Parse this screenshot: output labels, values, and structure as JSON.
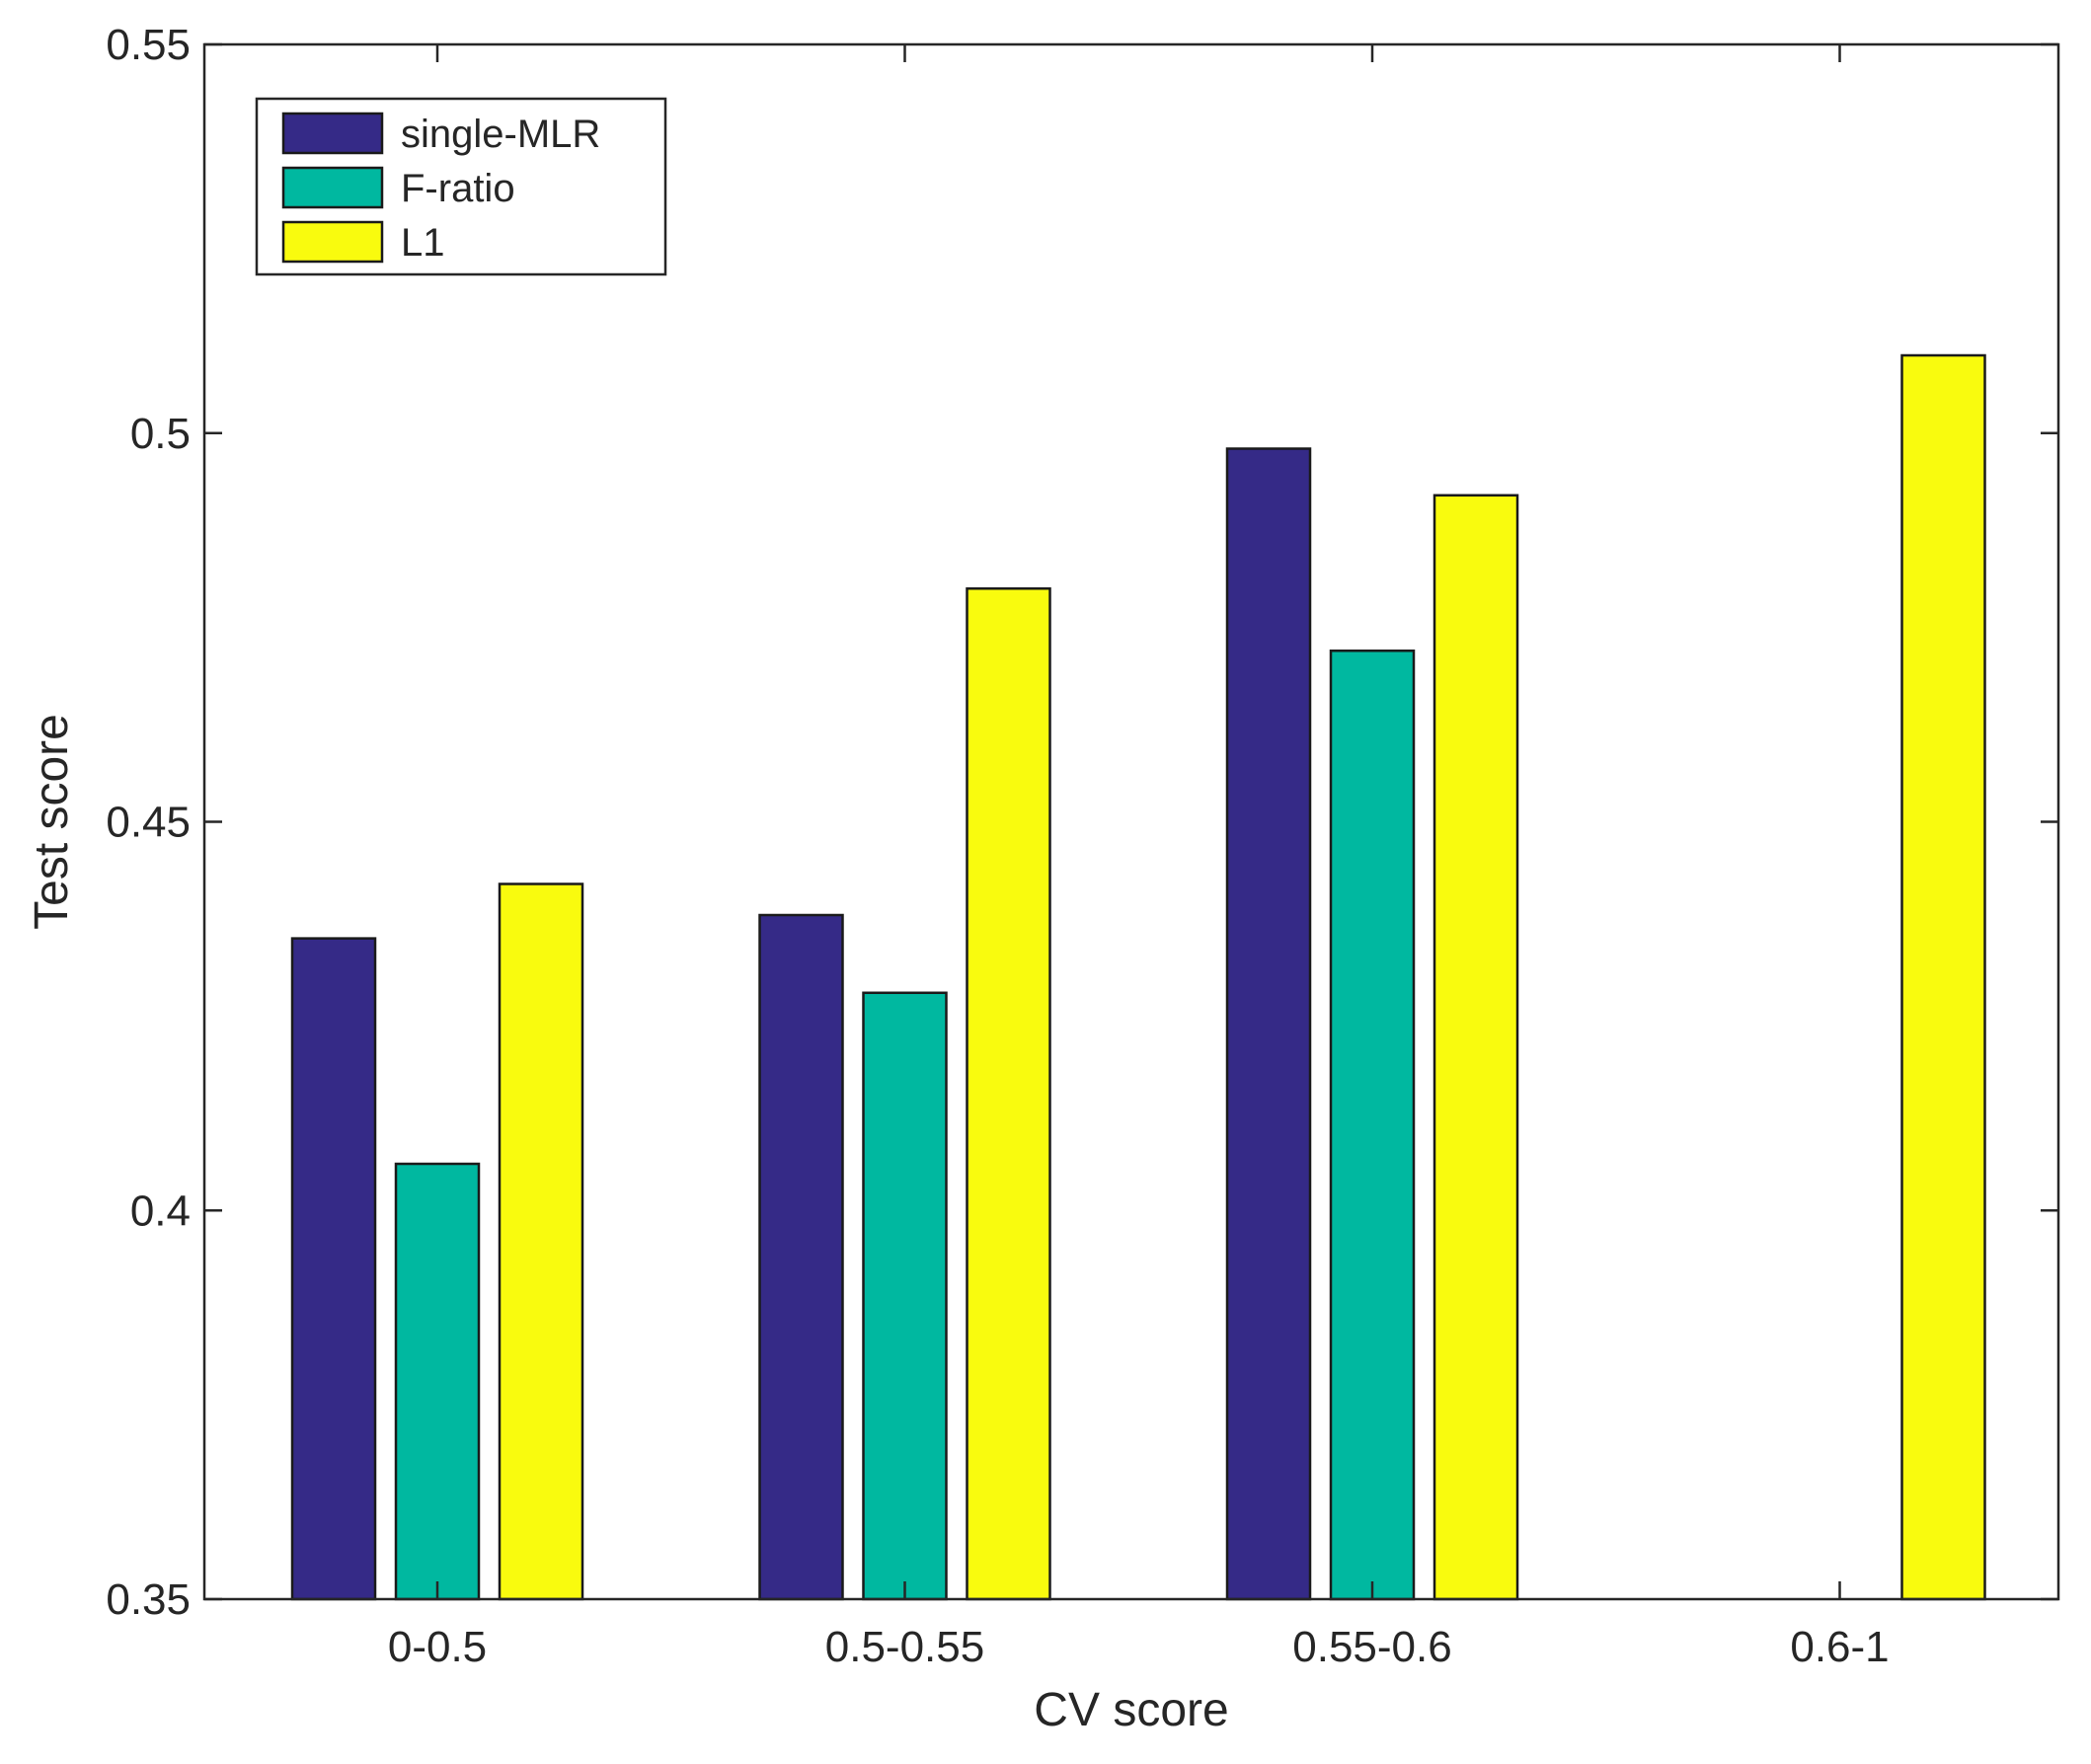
{
  "chart_data": {
    "type": "bar",
    "title": "",
    "xlabel": "CV score",
    "ylabel": "Test score",
    "categories": [
      "0-0.5",
      "0.5-0.55",
      "0.55-0.6",
      "0.6-1"
    ],
    "ylim": [
      0.35,
      0.55
    ],
    "yticks": [
      0.35,
      0.4,
      0.45,
      0.5,
      0.55
    ],
    "ytick_labels": [
      "0.35",
      "0.4",
      "0.45",
      "0.5",
      "0.55"
    ],
    "grid": false,
    "legend_position": "top-left",
    "series": [
      {
        "name": "single-MLR",
        "color": "#352a87",
        "values": [
          0.435,
          0.438,
          0.498,
          0.35
        ]
      },
      {
        "name": "F-ratio",
        "color": "#00b8a0",
        "values": [
          0.406,
          0.428,
          0.472,
          0.35
        ]
      },
      {
        "name": "L1",
        "color": "#f9fb0e",
        "values": [
          0.442,
          0.48,
          0.492,
          0.51
        ]
      }
    ]
  }
}
